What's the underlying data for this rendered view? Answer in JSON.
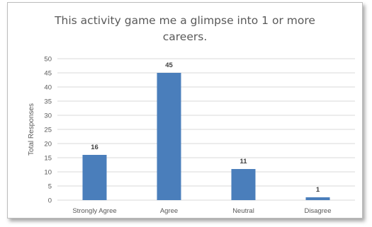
{
  "chart_data": {
    "type": "bar",
    "title_lines": [
      "This activity game me a glimpse into 1 or more",
      "careers."
    ],
    "xlabel": "",
    "ylabel": "Total Responses",
    "categories": [
      "Strongly Agree",
      "Agree",
      "Neutral",
      "Disagree"
    ],
    "values": [
      16,
      45,
      11,
      1
    ],
    "ylim": [
      0,
      50
    ],
    "yticks": [
      0,
      5,
      10,
      15,
      20,
      25,
      30,
      35,
      40,
      45,
      50
    ],
    "grid": true,
    "legend": "none",
    "bar_color": "#4a7ebb",
    "grid_color": "#d9d9d9"
  }
}
